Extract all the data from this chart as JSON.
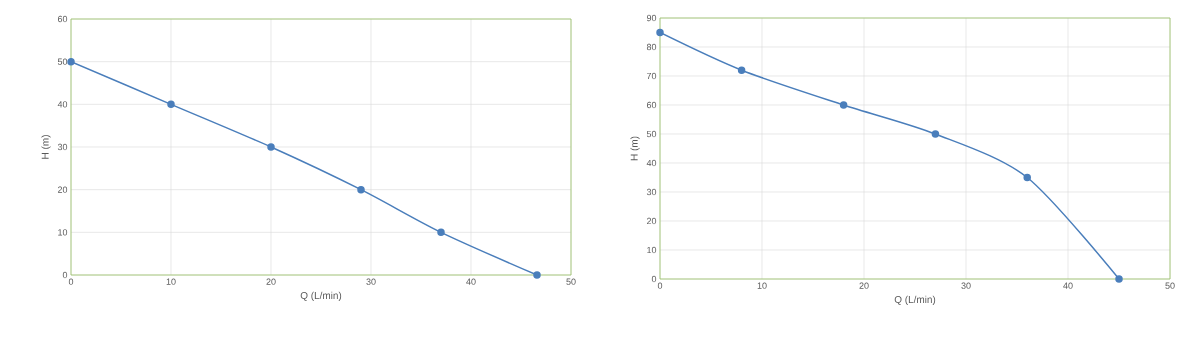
{
  "chart_data": [
    {
      "type": "line",
      "xlabel": "Q (L/min)",
      "ylabel": "H (m)",
      "x": [
        0,
        10,
        20,
        29,
        37,
        46.6
      ],
      "series": [
        {
          "color": "#4a7ebb",
          "values": [
            50,
            40,
            30,
            20,
            10,
            0
          ]
        }
      ],
      "xlim": [
        0,
        50
      ],
      "ylim": [
        0,
        60
      ],
      "xticks": [
        0,
        10,
        20,
        30,
        40,
        50
      ],
      "yticks": [
        0,
        10,
        20,
        30,
        40,
        50,
        60
      ],
      "grid": true,
      "marker": "circle"
    },
    {
      "type": "line",
      "xlabel": "Q (L/min)",
      "ylabel": "H (m)",
      "x": [
        0,
        8,
        18,
        27,
        36,
        45
      ],
      "series": [
        {
          "color": "#4a7ebb",
          "values": [
            85,
            72,
            60,
            50,
            35,
            0
          ]
        }
      ],
      "xlim": [
        0,
        50
      ],
      "ylim": [
        0,
        90
      ],
      "xticks": [
        0,
        10,
        20,
        30,
        40,
        50
      ],
      "yticks": [
        0,
        10,
        20,
        30,
        40,
        50,
        60,
        70,
        80,
        90
      ],
      "grid": true,
      "marker": "circle"
    }
  ]
}
